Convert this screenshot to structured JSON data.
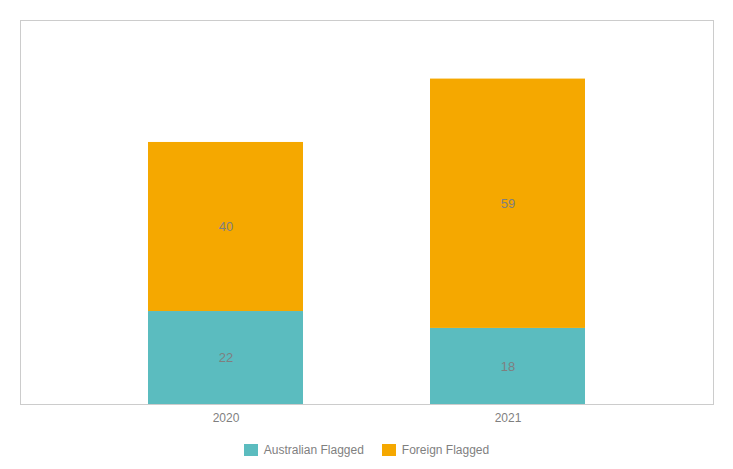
{
  "chart_data": {
    "type": "bar",
    "stacked": true,
    "data_labels": true,
    "tick_labels": "x",
    "legend": "bottom",
    "categories": [
      "2020",
      "2021"
    ],
    "series": [
      {
        "name": "Australian Flagged",
        "color": "#5bbcbf",
        "values": [
          22,
          18
        ]
      },
      {
        "name": "Foreign Flagged",
        "color": "#f5a800",
        "values": [
          40,
          59
        ]
      }
    ],
    "ylim": [
      0,
      90.86
    ]
  }
}
